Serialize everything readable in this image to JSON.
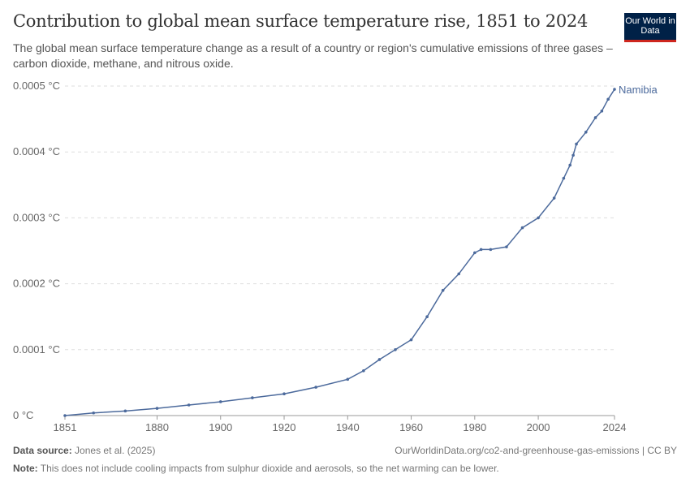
{
  "header": {
    "title": "Contribution to global mean surface temperature rise, 1851 to 2024",
    "subtitle": "The global mean surface temperature change as a result of a country or region's cumulative emissions of three gases – carbon dioxide, methane, and nitrous oxide.",
    "logo_text": "Our World in Data"
  },
  "footer": {
    "source_label": "Data source:",
    "source": "Jones et al. (2025)",
    "url": "OurWorldinData.org/co2-and-greenhouse-gas-emissions | CC BY",
    "note_label": "Note:",
    "note": "This does not include cooling impacts from sulphur dioxide and aerosols, so the net warming can be lower."
  },
  "chart_data": {
    "type": "line",
    "title": "Contribution to global mean surface temperature rise, 1851 to 2024",
    "xlabel": "",
    "ylabel": "",
    "xlim": [
      1851,
      2024
    ],
    "ylim": [
      0,
      0.0005
    ],
    "grid": "horizontal dashed",
    "x_ticks": [
      "1851",
      "1880",
      "1900",
      "1920",
      "1940",
      "1960",
      "1980",
      "2000",
      "2024"
    ],
    "y_ticks": [
      "0 °C",
      "0.0001 °C",
      "0.0002 °C",
      "0.0003 °C",
      "0.0004 °C",
      "0.0005 °C"
    ],
    "colors": {
      "series": "#4c6a9c"
    },
    "series": [
      {
        "name": "Namibia",
        "x": [
          1851,
          1860,
          1870,
          1880,
          1890,
          1900,
          1910,
          1920,
          1930,
          1940,
          1945,
          1950,
          1955,
          1960,
          1965,
          1970,
          1975,
          1980,
          1982,
          1985,
          1990,
          1995,
          2000,
          2005,
          2008,
          2010,
          2011,
          2012,
          2015,
          2018,
          2020,
          2022,
          2024
        ],
        "y": [
          0,
          4e-06,
          7e-06,
          1.1e-05,
          1.6e-05,
          2.1e-05,
          2.7e-05,
          3.3e-05,
          4.3e-05,
          5.5e-05,
          6.8e-05,
          8.5e-05,
          0.0001,
          0.000115,
          0.00015,
          0.00019,
          0.000215,
          0.000247,
          0.000252,
          0.000252,
          0.000256,
          0.000285,
          0.0003,
          0.00033,
          0.00036,
          0.00038,
          0.000395,
          0.000412,
          0.00043,
          0.000452,
          0.000462,
          0.00048,
          0.000495
        ]
      }
    ]
  }
}
